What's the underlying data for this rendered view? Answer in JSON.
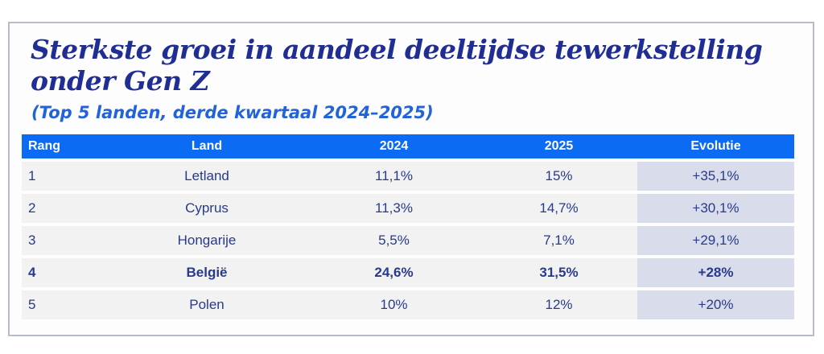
{
  "header": {
    "title_line1": "Sterkste groei in aandeel deeltijdse tewerkstelling",
    "title_line2": "onder Gen Z",
    "subtitle": "(Top 5 landen, derde kwartaal 2024–2025)"
  },
  "chart_data": {
    "type": "table",
    "title": "Sterkste groei in aandeel deeltijdse tewerkstelling onder Gen Z",
    "subtitle": "(Top 5 landen, derde kwartaal 2024–2025)",
    "columns": [
      "Rang",
      "Land",
      "2024",
      "2025",
      "Evolutie"
    ],
    "rows": [
      [
        "1",
        "Letland",
        "11,1%",
        "15%",
        "+35,1%"
      ],
      [
        "2",
        "Cyprus",
        "11,3%",
        "14,7%",
        "+30,1%"
      ],
      [
        "3",
        "Hongarije",
        "5,5%",
        "7,1%",
        "+29,1%"
      ],
      [
        "4",
        "België",
        "24,6%",
        "31,5%",
        "+28%"
      ],
      [
        "5",
        "Polen",
        "10%",
        "12%",
        "+20%"
      ]
    ],
    "highlighted_row_index": 3,
    "highlighted_column": "Evolutie"
  },
  "colors": {
    "header_bg": "#0b6bf3",
    "row_bg": "#f2f2f3",
    "evolutie_column_bg": "#d9dcea",
    "table_text": "#283a8c",
    "title_text": "#202e94",
    "subtitle_text": "#2263d9",
    "card_border": "#b7bcca"
  }
}
